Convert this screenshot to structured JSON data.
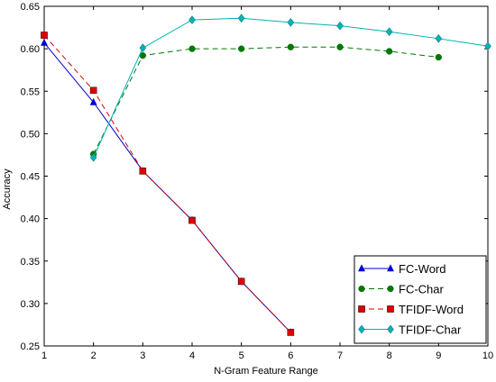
{
  "chart_data": {
    "type": "line",
    "title": "",
    "xlabel": "N-Gram Feature Range",
    "ylabel": "Accuracy",
    "xlim": [
      1,
      10
    ],
    "ylim": [
      0.25,
      0.65
    ],
    "xticks": [
      1,
      2,
      3,
      4,
      5,
      6,
      7,
      8,
      9,
      10
    ],
    "yticks": [
      0.25,
      0.3,
      0.35,
      0.4,
      0.45,
      0.5,
      0.55,
      0.6,
      0.65
    ],
    "grid": false,
    "legend_position": "lower-right",
    "series": [
      {
        "name": "FC-Word",
        "color": "#0000cc",
        "line_style": "solid",
        "marker": "triangle",
        "x": [
          1,
          2,
          3,
          4,
          5,
          6
        ],
        "y": [
          0.607,
          0.537,
          0.456,
          0.398,
          0.326,
          0.266
        ]
      },
      {
        "name": "FC-Char",
        "color": "#007700",
        "line_style": "dashed",
        "marker": "circle",
        "x": [
          2,
          3,
          4,
          5,
          6,
          7,
          8,
          9
        ],
        "y": [
          0.476,
          0.592,
          0.6,
          0.6,
          0.602,
          0.602,
          0.597,
          0.59
        ]
      },
      {
        "name": "TFIDF-Word",
        "color": "#dd0000",
        "line_style": "dashed",
        "marker": "square",
        "x": [
          1,
          2,
          3,
          4,
          5,
          6
        ],
        "y": [
          0.616,
          0.551,
          0.456,
          0.398,
          0.326,
          0.266
        ]
      },
      {
        "name": "TFIDF-Char",
        "color": "#00b3b3",
        "line_style": "solid",
        "marker": "diamond",
        "x": [
          2,
          3,
          4,
          5,
          6,
          7,
          8,
          9,
          10
        ],
        "y": [
          0.472,
          0.601,
          0.634,
          0.636,
          0.631,
          0.627,
          0.62,
          0.612,
          0.603
        ]
      }
    ]
  }
}
